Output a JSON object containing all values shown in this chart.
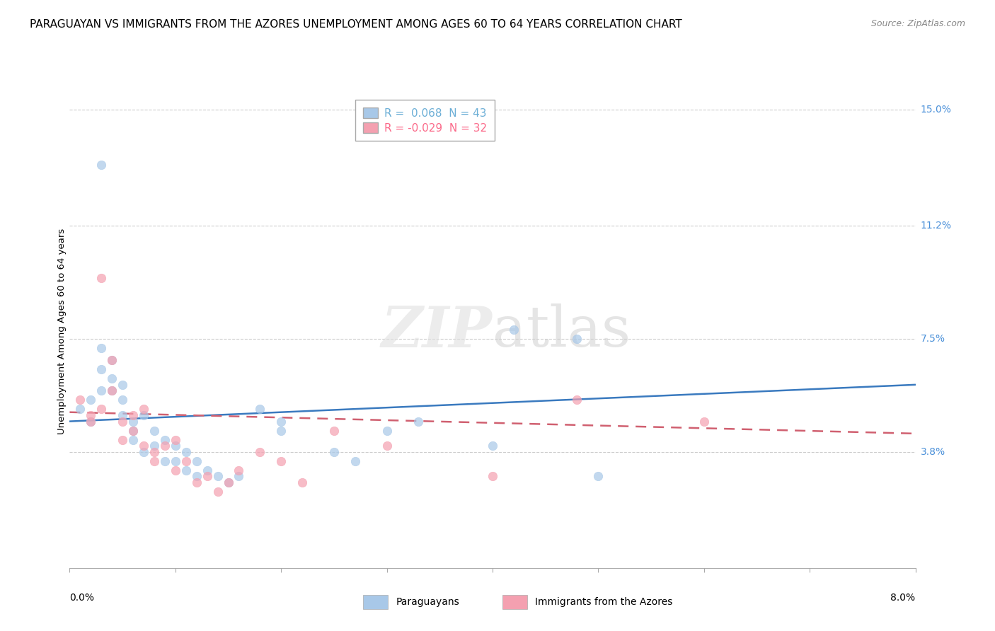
{
  "title": "PARAGUAYAN VS IMMIGRANTS FROM THE AZORES UNEMPLOYMENT AMONG AGES 60 TO 64 YEARS CORRELATION CHART",
  "source": "Source: ZipAtlas.com",
  "ylabel": "Unemployment Among Ages 60 to 64 years",
  "ytick_labels": [
    "15.0%",
    "11.2%",
    "7.5%",
    "3.8%"
  ],
  "ytick_values": [
    0.15,
    0.112,
    0.075,
    0.038
  ],
  "legend_entries": [
    {
      "label": "R =  0.068  N = 43",
      "color": "#6baed6"
    },
    {
      "label": "R = -0.029  N = 32",
      "color": "#fb6a8a"
    }
  ],
  "legend_labels_bottom": [
    "Paraguayans",
    "Immigrants from the Azores"
  ],
  "watermark": "ZIPatlas",
  "blue_scatter": [
    [
      0.001,
      0.052
    ],
    [
      0.002,
      0.055
    ],
    [
      0.002,
      0.048
    ],
    [
      0.003,
      0.058
    ],
    [
      0.003,
      0.065
    ],
    [
      0.003,
      0.072
    ],
    [
      0.004,
      0.062
    ],
    [
      0.004,
      0.068
    ],
    [
      0.004,
      0.058
    ],
    [
      0.005,
      0.06
    ],
    [
      0.005,
      0.055
    ],
    [
      0.005,
      0.05
    ],
    [
      0.006,
      0.048
    ],
    [
      0.006,
      0.045
    ],
    [
      0.006,
      0.042
    ],
    [
      0.007,
      0.05
    ],
    [
      0.007,
      0.038
    ],
    [
      0.008,
      0.045
    ],
    [
      0.008,
      0.04
    ],
    [
      0.009,
      0.042
    ],
    [
      0.009,
      0.035
    ],
    [
      0.01,
      0.04
    ],
    [
      0.01,
      0.035
    ],
    [
      0.011,
      0.038
    ],
    [
      0.011,
      0.032
    ],
    [
      0.012,
      0.035
    ],
    [
      0.012,
      0.03
    ],
    [
      0.013,
      0.032
    ],
    [
      0.014,
      0.03
    ],
    [
      0.015,
      0.028
    ],
    [
      0.016,
      0.03
    ],
    [
      0.018,
      0.052
    ],
    [
      0.02,
      0.048
    ],
    [
      0.02,
      0.045
    ],
    [
      0.025,
      0.038
    ],
    [
      0.027,
      0.035
    ],
    [
      0.03,
      0.045
    ],
    [
      0.033,
      0.048
    ],
    [
      0.04,
      0.04
    ],
    [
      0.042,
      0.078
    ],
    [
      0.048,
      0.075
    ],
    [
      0.05,
      0.03
    ],
    [
      0.003,
      0.132
    ]
  ],
  "pink_scatter": [
    [
      0.001,
      0.055
    ],
    [
      0.002,
      0.05
    ],
    [
      0.002,
      0.048
    ],
    [
      0.003,
      0.052
    ],
    [
      0.003,
      0.095
    ],
    [
      0.004,
      0.068
    ],
    [
      0.004,
      0.058
    ],
    [
      0.005,
      0.048
    ],
    [
      0.005,
      0.042
    ],
    [
      0.006,
      0.05
    ],
    [
      0.006,
      0.045
    ],
    [
      0.007,
      0.04
    ],
    [
      0.007,
      0.052
    ],
    [
      0.008,
      0.038
    ],
    [
      0.008,
      0.035
    ],
    [
      0.009,
      0.04
    ],
    [
      0.01,
      0.042
    ],
    [
      0.01,
      0.032
    ],
    [
      0.011,
      0.035
    ],
    [
      0.012,
      0.028
    ],
    [
      0.013,
      0.03
    ],
    [
      0.014,
      0.025
    ],
    [
      0.015,
      0.028
    ],
    [
      0.016,
      0.032
    ],
    [
      0.018,
      0.038
    ],
    [
      0.02,
      0.035
    ],
    [
      0.022,
      0.028
    ],
    [
      0.025,
      0.045
    ],
    [
      0.03,
      0.04
    ],
    [
      0.04,
      0.03
    ],
    [
      0.048,
      0.055
    ],
    [
      0.06,
      0.048
    ]
  ],
  "blue_line": {
    "x0": 0.0,
    "x1": 0.08,
    "y0": 0.048,
    "y1": 0.06
  },
  "pink_line": {
    "x0": 0.0,
    "x1": 0.08,
    "y0": 0.051,
    "y1": 0.044
  },
  "xmin": 0.0,
  "xmax": 0.08,
  "ymin": 0.0,
  "ymax": 0.155,
  "blue_color": "#a8c8e8",
  "pink_color": "#f4a0b0",
  "blue_line_color": "#3a7abf",
  "pink_line_color": "#d06070",
  "background_color": "#ffffff",
  "grid_color": "#cccccc",
  "title_fontsize": 11,
  "axis_fontsize": 10,
  "scatter_size": 80
}
